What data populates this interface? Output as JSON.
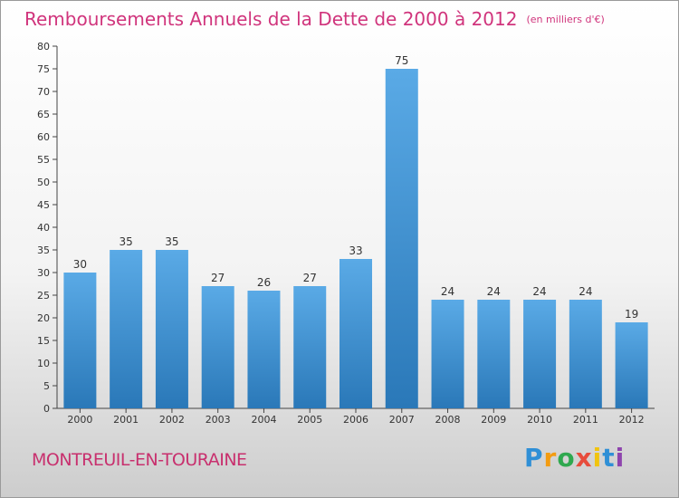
{
  "header": {
    "title": "Remboursements Annuels de la Dette de 2000 à 2012",
    "unit": "(en milliers d'€)"
  },
  "footer": {
    "commune": "MONTREUIL-EN-TOURAINE",
    "logo_letters": [
      "P",
      "r",
      "o",
      "x",
      "i",
      "t",
      "i"
    ],
    "logo_colors": [
      "#2f8fd6",
      "#f39c12",
      "#2fa84f",
      "#e74c3c",
      "#f1c40f",
      "#2f8fd6",
      "#8e44ad"
    ]
  },
  "chart_data": {
    "type": "bar",
    "categories": [
      "2000",
      "2001",
      "2002",
      "2003",
      "2004",
      "2005",
      "2006",
      "2007",
      "2008",
      "2009",
      "2010",
      "2011",
      "2012"
    ],
    "values": [
      30,
      35,
      35,
      27,
      26,
      27,
      33,
      75,
      24,
      24,
      24,
      24,
      19
    ],
    "data_labels": [
      "30",
      "35",
      "35",
      "27",
      "26",
      "27",
      "33",
      "75",
      "24",
      "24",
      "24",
      "24",
      "19"
    ],
    "ylim": [
      0,
      80
    ],
    "yticks": [
      0,
      5,
      10,
      15,
      20,
      25,
      30,
      35,
      40,
      45,
      50,
      55,
      60,
      65,
      70,
      75,
      80
    ],
    "grid": false,
    "bar_color_top": "#5aaae6",
    "bar_color_bottom": "#2a78b8"
  }
}
